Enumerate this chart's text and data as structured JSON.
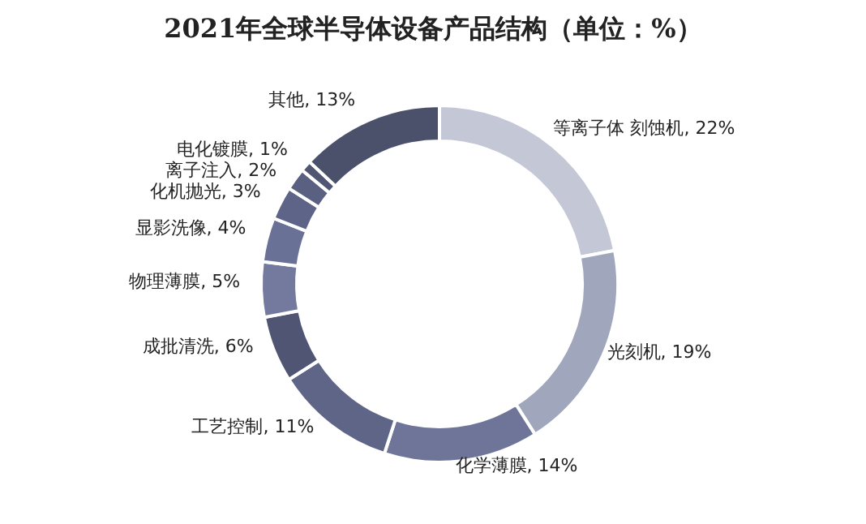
{
  "chart_data": {
    "type": "donut",
    "title": "2021年全球半导体设备产品结构（单位：%）",
    "categories": [
      "等离子体 刻蚀机",
      "光刻机",
      "化学薄膜",
      "工艺控制",
      "成批清洗",
      "物理薄膜",
      "显影洗像",
      "化机抛光",
      "离子注入",
      "电化镀膜",
      "其他"
    ],
    "values": [
      22,
      19,
      14,
      11,
      6,
      5,
      4,
      3,
      2,
      1,
      13
    ],
    "value_labels": [
      "22%",
      "19%",
      "14%",
      "11%",
      "6%",
      "5%",
      "4%",
      "3%",
      "2%",
      "1%",
      "13%"
    ],
    "colors": [
      "#c3c7d6",
      "#a0a6bc",
      "#6e7599",
      "#5e6587",
      "#4f5573",
      "#737a9e",
      "#6a7196",
      "#5d6487",
      "#5a6082",
      "#4f5573",
      "#4b506b"
    ]
  }
}
